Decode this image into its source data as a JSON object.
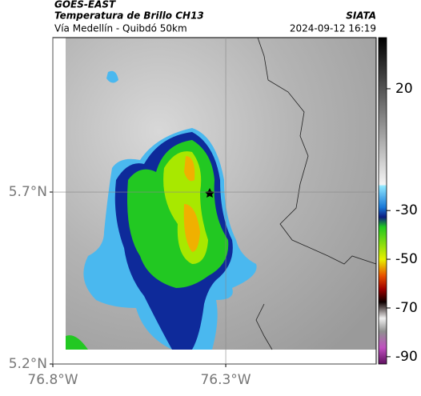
{
  "header": {
    "source": "GOES-EAST",
    "title": "Temperatura de Brillo CH13",
    "agency": "SIATA",
    "route": "Vía Medellín - Quibdó 50km",
    "datetime": "2024-09-12 16:19"
  },
  "map": {
    "latlim": [
      5.2,
      6.149
    ],
    "lonlim": [
      76.8,
      75.865
    ],
    "latticks": [
      {
        "value": 5.2,
        "label": "5.2°N"
      },
      {
        "value": 5.7,
        "label": "5.7°N"
      }
    ],
    "lonticks": [
      {
        "value": 76.8,
        "label": "76.8°W"
      },
      {
        "value": 76.3,
        "label": "76.3°W"
      }
    ]
  },
  "colorbar": {
    "lim": [
      41,
      -93
    ],
    "ticks": [
      20,
      -30,
      -50,
      -70,
      -90
    ]
  }
}
